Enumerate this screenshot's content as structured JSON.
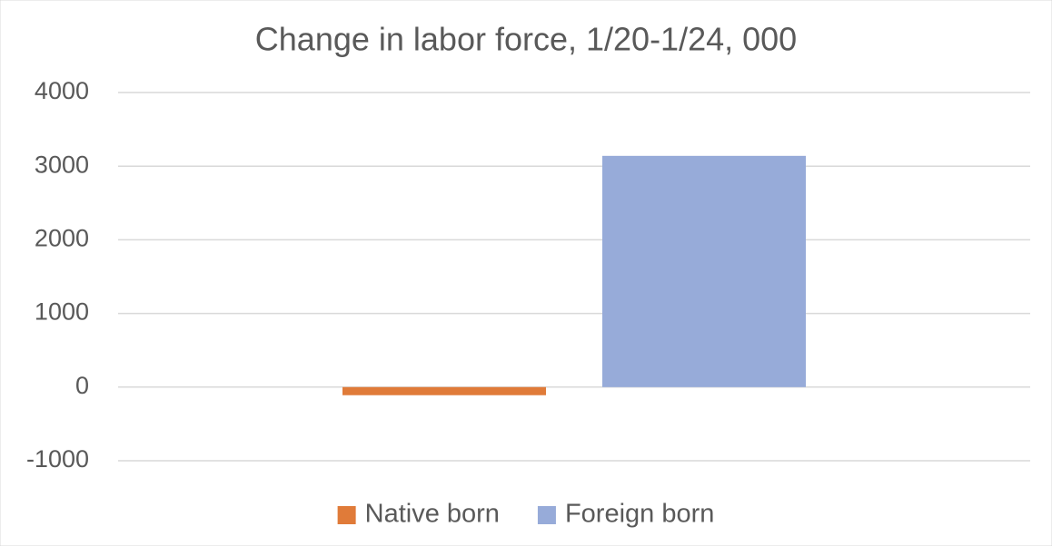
{
  "chart_data": {
    "type": "bar",
    "title": "Change in labor force, 1/20-1/24, 000",
    "categories": [
      null
    ],
    "series": [
      {
        "name": "Native born",
        "color": "#e07b39",
        "values": [
          -110
        ]
      },
      {
        "name": "Foreign born",
        "color": "#97abd9",
        "values": [
          3140
        ]
      }
    ],
    "ylim": [
      -1000,
      4000
    ],
    "yticks": [
      -1000,
      0,
      1000,
      2000,
      3000,
      4000
    ],
    "grid": true,
    "legend": "bottom"
  }
}
